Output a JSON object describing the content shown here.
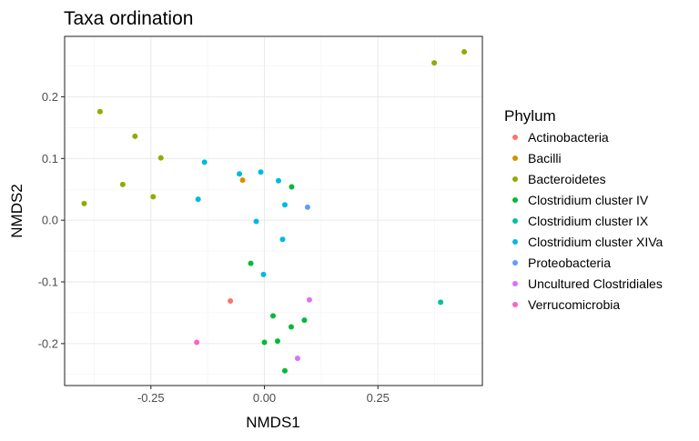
{
  "chart_data": {
    "type": "scatter",
    "title": "Taxa ordination",
    "xlabel": "NMDS1",
    "ylabel": "NMDS2",
    "xlim": [
      -0.44,
      0.48
    ],
    "ylim": [
      -0.268,
      0.298
    ],
    "x_ticks": [
      -0.25,
      0.0,
      0.25
    ],
    "x_tick_labels": [
      "-0.25",
      "0.00",
      "0.25"
    ],
    "y_ticks": [
      -0.2,
      -0.1,
      0.0,
      0.1,
      0.2
    ],
    "y_tick_labels": [
      "-0.2",
      "-0.1",
      "0.0",
      "0.1",
      "0.2"
    ],
    "grid": true,
    "legend": {
      "title": "Phylum",
      "position": "right"
    },
    "series": [
      {
        "name": "Actinobacteria",
        "color": "#F8766D",
        "points": [
          [
            -0.075,
            -0.131
          ]
        ]
      },
      {
        "name": "Bacilli",
        "color": "#D39200",
        "points": [
          [
            -0.048,
            0.065
          ]
        ]
      },
      {
        "name": "Bacteroidetes",
        "color": "#93AA00",
        "points": [
          [
            -0.397,
            0.027
          ],
          [
            -0.362,
            0.176
          ],
          [
            -0.285,
            0.136
          ],
          [
            -0.228,
            0.101
          ],
          [
            -0.312,
            0.058
          ],
          [
            -0.245,
            0.038
          ],
          [
            0.374,
            0.255
          ],
          [
            0.44,
            0.273
          ]
        ]
      },
      {
        "name": "Clostridium cluster IV",
        "color": "#00BA38",
        "points": [
          [
            0.06,
            0.054
          ],
          [
            -0.03,
            -0.07
          ],
          [
            0.019,
            -0.155
          ],
          [
            0.059,
            -0.173
          ],
          [
            0.088,
            -0.162
          ],
          [
            0.0,
            -0.198
          ],
          [
            0.029,
            -0.196
          ],
          [
            0.045,
            -0.244
          ]
        ]
      },
      {
        "name": "Clostridium cluster IX",
        "color": "#00C19F",
        "points": [
          [
            0.388,
            -0.133
          ]
        ]
      },
      {
        "name": "Clostridium cluster XIVa",
        "color": "#00B9E3",
        "points": [
          [
            -0.132,
            0.094
          ],
          [
            -0.055,
            0.075
          ],
          [
            -0.008,
            0.078
          ],
          [
            0.031,
            0.064
          ],
          [
            -0.146,
            0.034
          ],
          [
            0.045,
            0.025
          ],
          [
            -0.018,
            -0.002
          ],
          [
            0.04,
            -0.031
          ],
          [
            -0.002,
            -0.088
          ]
        ]
      },
      {
        "name": "Proteobacteria",
        "color": "#619CFF",
        "points": [
          [
            0.095,
            0.021
          ]
        ]
      },
      {
        "name": "Uncultured Clostridiales",
        "color": "#DB72FB",
        "points": [
          [
            0.099,
            -0.129
          ],
          [
            0.073,
            -0.224
          ]
        ]
      },
      {
        "name": "Verrucomicrobia",
        "color": "#FF61C3",
        "points": [
          [
            -0.149,
            -0.198
          ]
        ]
      }
    ]
  }
}
